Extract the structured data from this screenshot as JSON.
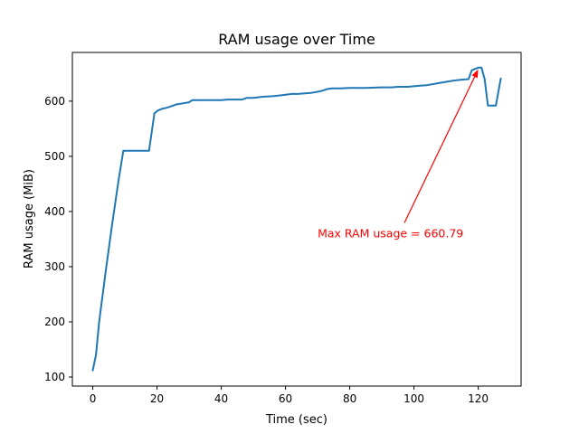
{
  "chart_data": {
    "type": "line",
    "title": "RAM usage over Time",
    "xlabel": "Time (sec)",
    "ylabel": "RAM usage (MiB)",
    "xlim": [
      -6.35,
      133.35
    ],
    "ylim": [
      83.6,
      688.3
    ],
    "xticks": [
      0,
      20,
      40,
      60,
      80,
      100,
      120
    ],
    "yticks": [
      100,
      200,
      300,
      400,
      500,
      600
    ],
    "grid": false,
    "legend": "none",
    "series": [
      {
        "color": "#1f77b4",
        "x": [
          0,
          1,
          2,
          4,
          6,
          8,
          9.5,
          12,
          15,
          17.5,
          19.2,
          20.2,
          21.5,
          23,
          24.5,
          26,
          28,
          30,
          31,
          35,
          40,
          42,
          45,
          46.5,
          48,
          50,
          53,
          56,
          59,
          62,
          64,
          66,
          68,
          70,
          71.5,
          73,
          74.5,
          77,
          80,
          85,
          90,
          93,
          95,
          98,
          100,
          102,
          104,
          107,
          110,
          112,
          115,
          117,
          118,
          120,
          121,
          122,
          123,
          124,
          125.5,
          127
        ],
        "y": [
          112,
          140,
          200,
          290,
          375,
          455,
          510,
          510,
          510,
          510,
          578,
          583,
          586,
          588,
          591,
          594,
          596,
          598,
          602,
          602,
          602,
          603,
          603,
          603,
          606,
          606,
          608,
          609,
          611,
          613,
          613,
          614,
          615,
          617,
          619,
          622,
          623,
          623,
          624,
          624,
          625,
          625,
          626,
          626,
          627,
          628,
          629,
          632,
          635,
          637,
          639,
          640,
          656,
          660.79,
          660.79,
          640,
          592,
          592,
          592,
          641
        ]
      }
    ],
    "annotation": {
      "text": "Max RAM usage = 660.79",
      "color": "#ff0000",
      "xy": [
        120,
        660.79
      ],
      "text_xy": [
        70,
        360
      ]
    }
  }
}
